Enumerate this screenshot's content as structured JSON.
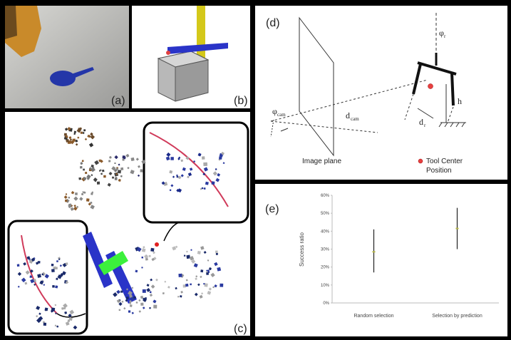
{
  "panels": {
    "a": "(a)",
    "b": "(b)",
    "c": "(c)",
    "d": "(d)",
    "e": "(e)"
  },
  "diagram": {
    "phi_cam": {
      "symbol": "φ",
      "sub": "cam"
    },
    "d_cam": {
      "symbol": "d",
      "sub": "cam"
    },
    "image_plane": "Image plane",
    "tool_center": [
      "Tool Center",
      "Position"
    ],
    "phi_r": {
      "symbol": "φ",
      "sub": "r"
    },
    "h": "h",
    "d_r": {
      "symbol": "d",
      "sub": "r"
    }
  },
  "chart_data": {
    "type": "errorbar",
    "y_label": "Success ratio",
    "categories": [
      "Random selection",
      "Selection by prediction"
    ],
    "series": [
      {
        "color": "#b8b84a",
        "bar_color": "#222222",
        "values": [
          28.5,
          41.5
        ],
        "lower": [
          17,
          30
        ],
        "upper": [
          41,
          53
        ]
      }
    ],
    "ylim": [
      0,
      60
    ],
    "yticks": [
      {
        "value": 0,
        "label": "0%"
      },
      {
        "value": 10,
        "label": "10%"
      },
      {
        "value": 20,
        "label": "20%"
      },
      {
        "value": 30,
        "label": "30%"
      },
      {
        "value": 40,
        "label": "40%"
      },
      {
        "value": 50,
        "label": "50%"
      },
      {
        "value": 60,
        "label": "60%"
      }
    ]
  }
}
